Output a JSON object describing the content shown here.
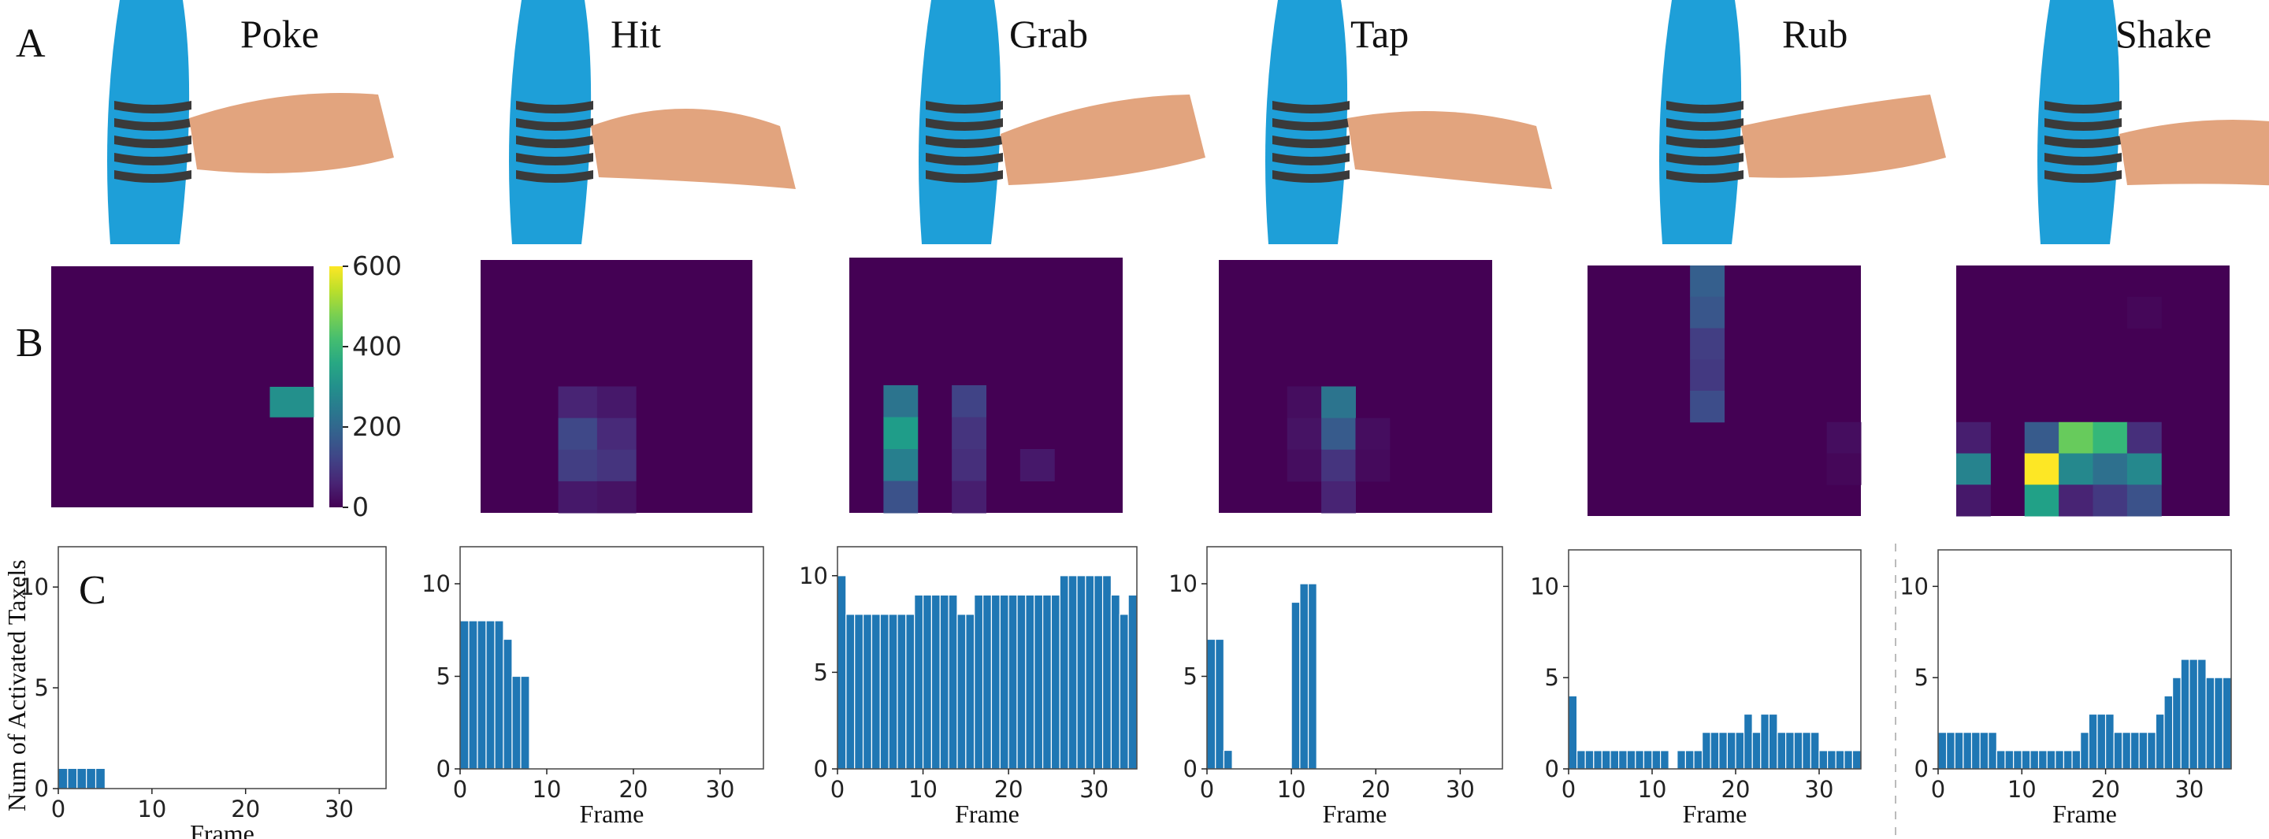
{
  "row_labels": {
    "a": "A",
    "b": "B",
    "c": "C"
  },
  "gestures": [
    "Poke",
    "Hit",
    "Grab",
    "Tap",
    "Rub",
    "Shake"
  ],
  "colorbar": {
    "ticks": [
      "600",
      "400",
      "200",
      "0"
    ],
    "range": [
      0,
      600
    ],
    "colormap": "viridis"
  },
  "y_axis_title": "Num of Activated Taxels",
  "x_axis_title": "Frame",
  "colors": {
    "bar": "#1f77b4",
    "sleeve": "#1e9fd8",
    "stripe": "#3a3a3a",
    "skin": "#e2a47e"
  },
  "heatmaps": [
    {
      "gesture": "Poke",
      "grid": [
        7,
        6
      ],
      "cells": [
        {
          "r": 4,
          "c": 5,
          "v": 300
        }
      ]
    },
    {
      "gesture": "Hit",
      "grid": [
        7,
        7
      ],
      "cells": [
        {
          "r": 4,
          "c": 2,
          "v": 60
        },
        {
          "r": 4,
          "c": 3,
          "v": 40
        },
        {
          "r": 5,
          "c": 2,
          "v": 130
        },
        {
          "r": 5,
          "c": 3,
          "v": 70
        },
        {
          "r": 6,
          "c": 2,
          "v": 110
        },
        {
          "r": 6,
          "c": 3,
          "v": 90
        },
        {
          "r": 7,
          "c": 2,
          "v": 40
        },
        {
          "r": 7,
          "c": 3,
          "v": 30
        }
      ]
    },
    {
      "gesture": "Grab",
      "grid": [
        7,
        8
      ],
      "cells": [
        {
          "r": 4,
          "c": 1,
          "v": 230
        },
        {
          "r": 4,
          "c": 3,
          "v": 120
        },
        {
          "r": 5,
          "c": 1,
          "v": 330
        },
        {
          "r": 5,
          "c": 3,
          "v": 90
        },
        {
          "r": 6,
          "c": 1,
          "v": 260
        },
        {
          "r": 6,
          "c": 3,
          "v": 80
        },
        {
          "r": 6,
          "c": 5,
          "v": 40
        },
        {
          "r": 7,
          "c": 1,
          "v": 150
        },
        {
          "r": 7,
          "c": 3,
          "v": 50
        }
      ]
    },
    {
      "gesture": "Tap",
      "grid": [
        7,
        8
      ],
      "cells": [
        {
          "r": 4,
          "c": 2,
          "v": 20
        },
        {
          "r": 4,
          "c": 3,
          "v": 230
        },
        {
          "r": 5,
          "c": 2,
          "v": 30
        },
        {
          "r": 5,
          "c": 3,
          "v": 170
        },
        {
          "r": 5,
          "c": 4,
          "v": 20
        },
        {
          "r": 6,
          "c": 2,
          "v": 20
        },
        {
          "r": 6,
          "c": 3,
          "v": 90
        },
        {
          "r": 6,
          "c": 4,
          "v": 15
        },
        {
          "r": 7,
          "c": 3,
          "v": 60
        }
      ]
    },
    {
      "gesture": "Rub",
      "grid": [
        7,
        8
      ],
      "cells": [
        {
          "r": 0,
          "c": 3,
          "v": 180
        },
        {
          "r": 1,
          "c": 3,
          "v": 160
        },
        {
          "r": 2,
          "c": 3,
          "v": 110
        },
        {
          "r": 3,
          "c": 3,
          "v": 100
        },
        {
          "r": 4,
          "c": 3,
          "v": 140
        },
        {
          "r": 5,
          "c": 7,
          "v": 20
        },
        {
          "r": 6,
          "c": 7,
          "v": 10
        }
      ]
    },
    {
      "gesture": "Shake",
      "grid": [
        7,
        8
      ],
      "cells": [
        {
          "r": 1,
          "c": 5,
          "v": 10
        },
        {
          "r": 5,
          "c": 0,
          "v": 50
        },
        {
          "r": 5,
          "c": 2,
          "v": 170
        },
        {
          "r": 5,
          "c": 3,
          "v": 460
        },
        {
          "r": 5,
          "c": 4,
          "v": 400
        },
        {
          "r": 5,
          "c": 5,
          "v": 80
        },
        {
          "r": 6,
          "c": 0,
          "v": 270
        },
        {
          "r": 6,
          "c": 2,
          "v": 600
        },
        {
          "r": 6,
          "c": 3,
          "v": 280
        },
        {
          "r": 6,
          "c": 4,
          "v": 220
        },
        {
          "r": 6,
          "c": 5,
          "v": 280
        },
        {
          "r": 7,
          "c": 0,
          "v": 40
        },
        {
          "r": 7,
          "c": 2,
          "v": 340
        },
        {
          "r": 7,
          "c": 3,
          "v": 60
        },
        {
          "r": 7,
          "c": 4,
          "v": 100
        },
        {
          "r": 7,
          "c": 5,
          "v": 150
        }
      ]
    }
  ],
  "chart_data": [
    {
      "type": "bar",
      "gesture": "Poke",
      "x": [
        0,
        1,
        2,
        3,
        4
      ],
      "values": [
        1,
        1,
        1,
        1,
        1
      ],
      "xlim": [
        0,
        35
      ],
      "ylim": [
        0,
        12
      ],
      "xticks": [
        "0",
        "10",
        "20",
        "30"
      ],
      "yticks": [
        "0",
        "5",
        "10"
      ],
      "xlabel": "Frame",
      "ylabel": "Num of Activated Taxels"
    },
    {
      "type": "bar",
      "gesture": "Hit",
      "x": [
        0,
        1,
        2,
        3,
        4,
        5,
        6,
        7,
        8
      ],
      "values": [
        8,
        8,
        8,
        8,
        8,
        7,
        5,
        5,
        0
      ],
      "xlim": [
        0,
        35
      ],
      "ylim": [
        0,
        12
      ],
      "xticks": [
        "0",
        "10",
        "20",
        "30"
      ],
      "yticks": [
        "0",
        "5",
        "10"
      ],
      "xlabel": "Frame",
      "ylabel": ""
    },
    {
      "type": "bar",
      "gesture": "Grab",
      "x": [
        0,
        1,
        2,
        3,
        4,
        5,
        6,
        7,
        8,
        9,
        10,
        11,
        12,
        13,
        14,
        15,
        16,
        17,
        18,
        19,
        20,
        21,
        22,
        23,
        24,
        25,
        26,
        27,
        28,
        29,
        30,
        31,
        32,
        33,
        34
      ],
      "values": [
        10,
        8,
        8,
        8,
        8,
        8,
        8,
        8,
        8,
        9,
        9,
        9,
        9,
        9,
        8,
        8,
        9,
        9,
        9,
        9,
        9,
        9,
        9,
        9,
        9,
        9,
        10,
        10,
        10,
        10,
        10,
        10,
        9,
        8,
        9
      ],
      "xlim": [
        0,
        35
      ],
      "ylim": [
        0,
        11.5
      ],
      "xticks": [
        "0",
        "10",
        "20",
        "30"
      ],
      "yticks": [
        "0",
        "5",
        "10"
      ],
      "xlabel": "Frame",
      "ylabel": ""
    },
    {
      "type": "bar",
      "gesture": "Tap",
      "x": [
        0,
        1,
        2,
        10,
        11,
        12
      ],
      "values": [
        7,
        7,
        1,
        9,
        10,
        10
      ],
      "xlim": [
        0,
        35
      ],
      "ylim": [
        0,
        12
      ],
      "xticks": [
        "0",
        "10",
        "20",
        "30"
      ],
      "yticks": [
        "0",
        "5",
        "10"
      ],
      "xlabel": "Frame",
      "ylabel": ""
    },
    {
      "type": "bar",
      "gesture": "Rub",
      "x": [
        0,
        1,
        2,
        3,
        4,
        5,
        6,
        7,
        8,
        9,
        10,
        11,
        12,
        13,
        14,
        15,
        16,
        17,
        18,
        19,
        20,
        21,
        22,
        23,
        24,
        25,
        26,
        27,
        28,
        29,
        30,
        31,
        32,
        33,
        34
      ],
      "values": [
        4,
        1,
        1,
        1,
        1,
        1,
        1,
        1,
        1,
        1,
        1,
        1,
        0,
        1,
        1,
        1,
        2,
        2,
        2,
        2,
        2,
        3,
        2,
        3,
        3,
        2,
        2,
        2,
        2,
        2,
        1,
        1,
        1,
        1,
        1
      ],
      "xlim": [
        0,
        35
      ],
      "ylim": [
        0,
        12
      ],
      "xticks": [
        "0",
        "10",
        "20",
        "30"
      ],
      "yticks": [
        "0",
        "5",
        "10"
      ],
      "xlabel": "Frame",
      "ylabel": ""
    },
    {
      "type": "bar",
      "gesture": "Shake",
      "x": [
        0,
        1,
        2,
        3,
        4,
        5,
        6,
        7,
        8,
        9,
        10,
        11,
        12,
        13,
        14,
        15,
        16,
        17,
        18,
        19,
        20,
        21,
        22,
        23,
        24,
        25,
        26,
        27,
        28,
        29,
        30,
        31,
        32,
        33,
        34
      ],
      "values": [
        2,
        2,
        2,
        2,
        2,
        2,
        2,
        1,
        1,
        1,
        1,
        1,
        1,
        1,
        1,
        1,
        1,
        2,
        3,
        3,
        3,
        2,
        2,
        2,
        2,
        2,
        3,
        4,
        5,
        6,
        6,
        6,
        5,
        5,
        5
      ],
      "xlim": [
        0,
        35
      ],
      "ylim": [
        0,
        12
      ],
      "xticks": [
        "0",
        "10",
        "20",
        "30"
      ],
      "yticks": [
        "0",
        "5",
        "10"
      ],
      "xlabel": "Frame",
      "ylabel": ""
    }
  ]
}
